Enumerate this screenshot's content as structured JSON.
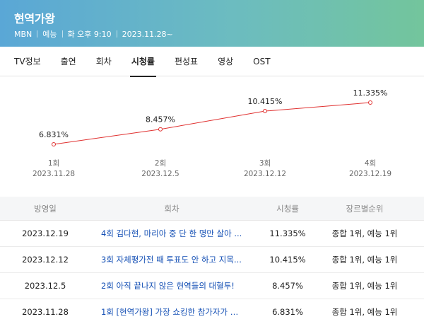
{
  "header": {
    "title": "현역가왕",
    "channel": "MBN",
    "genre": "예능",
    "schedule": "화 오후 9:10",
    "start": "2023.11.28~"
  },
  "tabs": [
    {
      "label": "TV정보",
      "active": false
    },
    {
      "label": "출연",
      "active": false
    },
    {
      "label": "회차",
      "active": false
    },
    {
      "label": "시청률",
      "active": true
    },
    {
      "label": "편성표",
      "active": false
    },
    {
      "label": "영상",
      "active": false
    },
    {
      "label": "OST",
      "active": false
    }
  ],
  "chart_data": {
    "type": "line",
    "line_color": "#e0302f",
    "points": [
      {
        "episode": "1회",
        "date": "2023.11.28",
        "value": 6.831,
        "label": "6.831%"
      },
      {
        "episode": "2회",
        "date": "2023.12.5",
        "value": 8.457,
        "label": "8.457%"
      },
      {
        "episode": "3회",
        "date": "2023.12.12",
        "value": 10.415,
        "label": "10.415%"
      },
      {
        "episode": "4회",
        "date": "2023.12.19",
        "value": 11.335,
        "label": "11.335%"
      }
    ]
  },
  "table": {
    "headers": [
      "방영일",
      "회차",
      "시청률",
      "장르별순위"
    ],
    "rows": [
      {
        "date": "2023.12.19",
        "episode": "4회 김다현, 마리아 중 단 한 명만 살아 ...",
        "rating": "11.335%",
        "rank": "종합 1위, 예능 1위"
      },
      {
        "date": "2023.12.12",
        "episode": "3회 자체평가전 때 투표도 안 하고 지목...",
        "rating": "10.415%",
        "rank": "종합 1위, 예능 1위"
      },
      {
        "date": "2023.12.5",
        "episode": "2회 아직 끝나지 않은 현역들의 대혈투!",
        "rating": "8.457%",
        "rank": "종합 1위, 예능 1위"
      },
      {
        "date": "2023.11.28",
        "episode": "1회 [현역가왕] 가장 쇼킹한 참가자가 떴...",
        "rating": "6.831%",
        "rank": "종합 1위, 예능 1위"
      }
    ]
  }
}
